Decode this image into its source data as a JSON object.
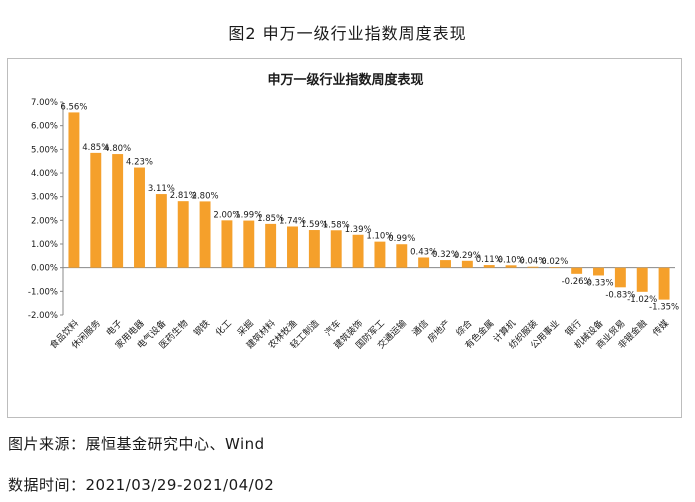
{
  "figure": {
    "title": "图2 申万一级行业指数周度表现",
    "source": "图片来源：展恒基金研究中心、Wind",
    "date_range": "数据时间：2021/03/29-2021/04/02"
  },
  "colors": {
    "bar": "#F5A02B",
    "axis": "#888888",
    "frame": "#bdbdbd"
  },
  "chart_data": {
    "type": "bar",
    "title": "申万一级行业指数周度表现",
    "xlabel": "",
    "ylabel": "",
    "ylim": [
      -2,
      7
    ],
    "yticks": [
      "7.00%",
      "6.00%",
      "5.00%",
      "4.00%",
      "3.00%",
      "2.00%",
      "1.00%",
      "0.00%",
      "-1.00%",
      "-2.00%"
    ],
    "ytick_values": [
      7,
      6,
      5,
      4,
      3,
      2,
      1,
      0,
      -1,
      -2
    ],
    "grid": false,
    "categories": [
      "食品饮料",
      "休闲服务",
      "电子",
      "家用电器",
      "电气设备",
      "医药生物",
      "钢铁",
      "化工",
      "采掘",
      "建筑材料",
      "农林牧渔",
      "轻工制造",
      "汽车",
      "建筑装饰",
      "国防军工",
      "交通运输",
      "通信",
      "房地产",
      "综合",
      "有色金属",
      "计算机",
      "纺织服装",
      "公用事业",
      "银行",
      "机械设备",
      "商业贸易",
      "非银金融",
      "传媒"
    ],
    "values": [
      6.56,
      4.85,
      4.8,
      4.23,
      3.11,
      2.81,
      2.8,
      2.0,
      1.99,
      1.85,
      1.74,
      1.59,
      1.58,
      1.39,
      1.1,
      0.99,
      0.43,
      0.32,
      0.29,
      0.11,
      0.1,
      0.04,
      0.02,
      -0.26,
      -0.33,
      -0.83,
      -1.02,
      -1.35
    ],
    "data_labels": [
      "6.56%",
      "4.85%",
      "4.80%",
      "4.23%",
      "3.11%",
      "2.81%",
      "2.80%",
      "2.00%",
      "1.99%",
      "1.85%",
      "1.74%",
      "1.59%",
      "1.58%",
      "1.39%",
      "1.10%",
      "0.99%",
      "0.43%",
      "0.32%",
      "0.29%",
      "0.11%",
      "0.10%",
      "0.04%",
      "0.02%",
      "-0.26%",
      "-0.33%",
      "-0.83%",
      "-1.02%",
      "-1.35%"
    ]
  }
}
